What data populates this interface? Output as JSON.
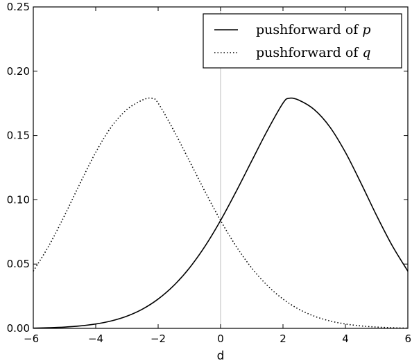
{
  "chart_data": {
    "type": "line",
    "title": "",
    "xlabel": "d",
    "ylabel": "",
    "xlim": [
      -6,
      6
    ],
    "ylim": [
      0,
      0.25
    ],
    "x_ticks": [
      -6,
      -4,
      -2,
      0,
      2,
      4,
      6
    ],
    "x_tick_labels": [
      "−6",
      "−4",
      "−2",
      "0",
      "2",
      "4",
      "6"
    ],
    "y_ticks": [
      0.0,
      0.05,
      0.1,
      0.15,
      0.2,
      0.25
    ],
    "y_tick_labels": [
      "0.00",
      "0.05",
      "0.10",
      "0.15",
      "0.20",
      "0.25"
    ],
    "grid": false,
    "vertical_reference_line": {
      "x": 0,
      "color": "#c8c8c8"
    },
    "legend": {
      "placement": "top-right",
      "entries": [
        {
          "text": "pushforward of ",
          "math": "p",
          "style": "solid"
        },
        {
          "text": "pushforward of ",
          "math": "q",
          "style": "dotted"
        }
      ]
    },
    "series": [
      {
        "style": "solid",
        "color": "#000000",
        "x": [
          -6,
          -5.5,
          -5,
          -4.5,
          -4,
          -3.5,
          -3,
          -2.5,
          -2,
          -1.5,
          -1,
          -0.5,
          0,
          0.5,
          1,
          1.5,
          2,
          2.2,
          2.5,
          3,
          3.5,
          4,
          4.5,
          5,
          5.5,
          6
        ],
        "y": [
          0.0002,
          0.0005,
          0.001,
          0.0019,
          0.0034,
          0.0058,
          0.0095,
          0.015,
          0.0228,
          0.0333,
          0.0469,
          0.0638,
          0.0839,
          0.1065,
          0.1303,
          0.1539,
          0.1752,
          0.179,
          0.1776,
          0.1702,
          0.1567,
          0.1369,
          0.1129,
          0.0877,
          0.0643,
          0.0445
        ]
      },
      {
        "style": "dotted",
        "color": "#000000",
        "x": [
          -6,
          -5.5,
          -5,
          -4.5,
          -4,
          -3.5,
          -3,
          -2.5,
          -2.2,
          -2,
          -1.5,
          -1,
          -0.5,
          0,
          0.5,
          1,
          1.5,
          2,
          2.5,
          3,
          3.5,
          4,
          4.5,
          5,
          5.5,
          6
        ],
        "y": [
          0.0445,
          0.0643,
          0.0877,
          0.1129,
          0.1369,
          0.1567,
          0.1702,
          0.1776,
          0.179,
          0.1752,
          0.1539,
          0.1303,
          0.1065,
          0.0839,
          0.0638,
          0.0469,
          0.0333,
          0.0228,
          0.015,
          0.0095,
          0.0058,
          0.0034,
          0.0019,
          0.001,
          0.0005,
          0.0002
        ]
      }
    ]
  }
}
